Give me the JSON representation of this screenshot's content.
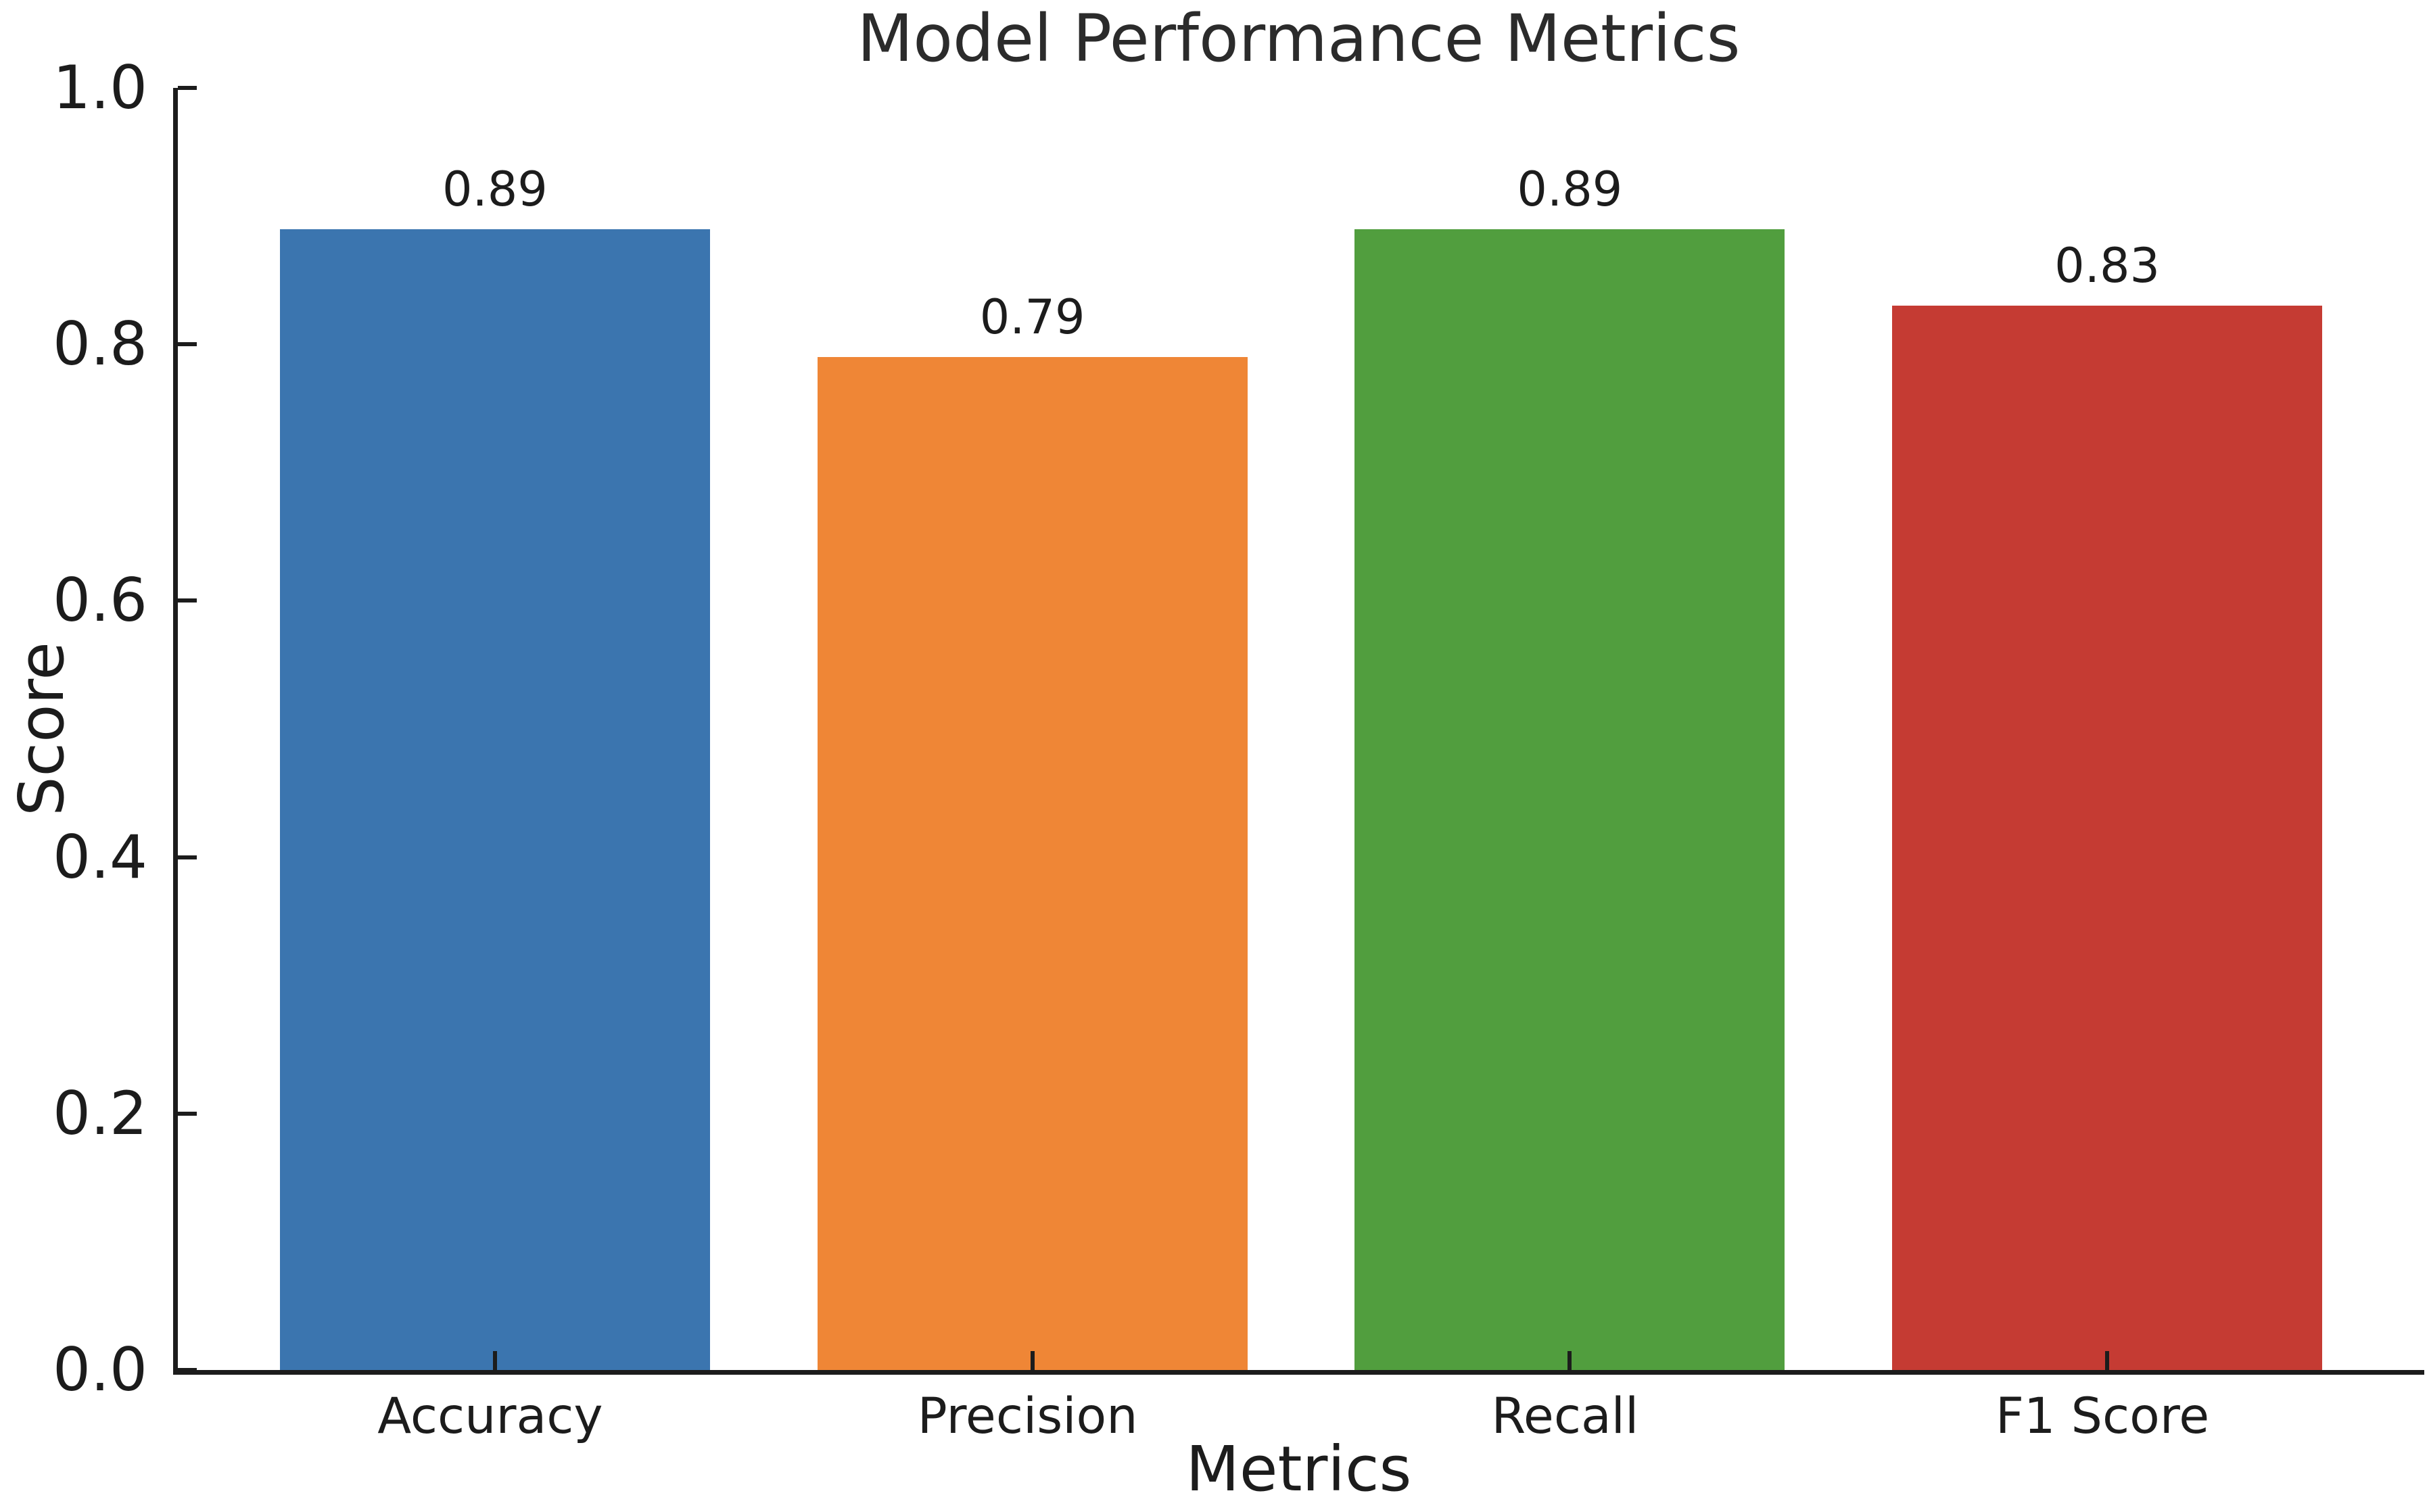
{
  "chart_data": {
    "type": "bar",
    "title": "Model Performance Metrics",
    "xlabel": "Metrics",
    "ylabel": "Score",
    "categories": [
      "Accuracy",
      "Precision",
      "Recall",
      "F1 Score"
    ],
    "values": [
      0.89,
      0.79,
      0.89,
      0.83
    ],
    "value_labels": [
      "0.89",
      "0.79",
      "0.89",
      "0.83"
    ],
    "bar_colors": [
      "#3B75AF",
      "#EF8636",
      "#519E3E",
      "#C53B33"
    ],
    "ylim": [
      0.0,
      1.0
    ],
    "yticks": [
      0.0,
      0.2,
      0.4,
      0.6,
      0.8,
      1.0
    ],
    "ytick_labels": [
      "0.0",
      "0.2",
      "0.4",
      "0.6",
      "0.8",
      "1.0"
    ],
    "bar_width_fraction": 0.8,
    "grid": false,
    "legend": "none",
    "background_color": "#ffffff",
    "axis_color": "#1c1c1c",
    "title_color": "#2b2b2b"
  }
}
